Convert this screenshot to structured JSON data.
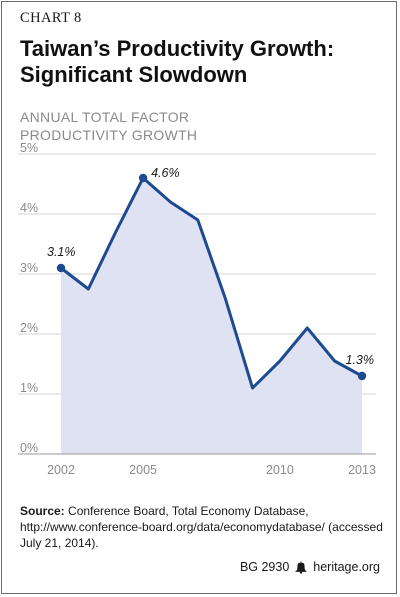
{
  "header": {
    "chart_number": "CHART 8",
    "title_line1": "Taiwan’s Productivity Growth:",
    "title_line2": "Significant Slowdown",
    "subtitle_line1": "ANNUAL TOTAL FACTOR",
    "subtitle_line2": "PRODUCTIVITY GROWTH"
  },
  "chart_data": {
    "type": "area",
    "title": "Taiwan’s Productivity Growth: Significant Slowdown",
    "ylabel": "ANNUAL TOTAL FACTOR PRODUCTIVITY GROWTH",
    "x": [
      2002,
      2003,
      2004,
      2005,
      2006,
      2007,
      2008,
      2009,
      2010,
      2011,
      2012,
      2013
    ],
    "values": [
      3.1,
      2.75,
      3.7,
      4.6,
      4.2,
      3.9,
      2.6,
      1.1,
      1.55,
      2.1,
      1.55,
      1.3
    ],
    "ylim": [
      0,
      5
    ],
    "xlim": [
      2002,
      2013
    ],
    "y_ticks": [
      0,
      1,
      2,
      3,
      4,
      5
    ],
    "y_tick_labels": [
      "0%",
      "1%",
      "2%",
      "3%",
      "4%",
      "5%"
    ],
    "x_ticks": [
      2002,
      2005,
      2010,
      2013
    ],
    "x_tick_labels": [
      "2002",
      "2005",
      "2010",
      "2013"
    ],
    "annotations": [
      {
        "x": 2002,
        "y": 3.1,
        "text": "3.1%"
      },
      {
        "x": 2005,
        "y": 4.6,
        "text": "4.6%"
      },
      {
        "x": 2013,
        "y": 1.3,
        "text": "1.3%"
      }
    ],
    "grid": true,
    "line_color": "#1e4a8f",
    "fill_color": "#dfe2f2",
    "grid_color": "#d3d3d3"
  },
  "source": {
    "label": "Source:",
    "text": " Conference Board, Total Economy Database, http://www.conference-board.org/data/economydatabase/ (accessed July 21, 2014)."
  },
  "footer": {
    "code": "BG 2930",
    "site": "heritage.org",
    "icon": "liberty-bell-icon"
  }
}
